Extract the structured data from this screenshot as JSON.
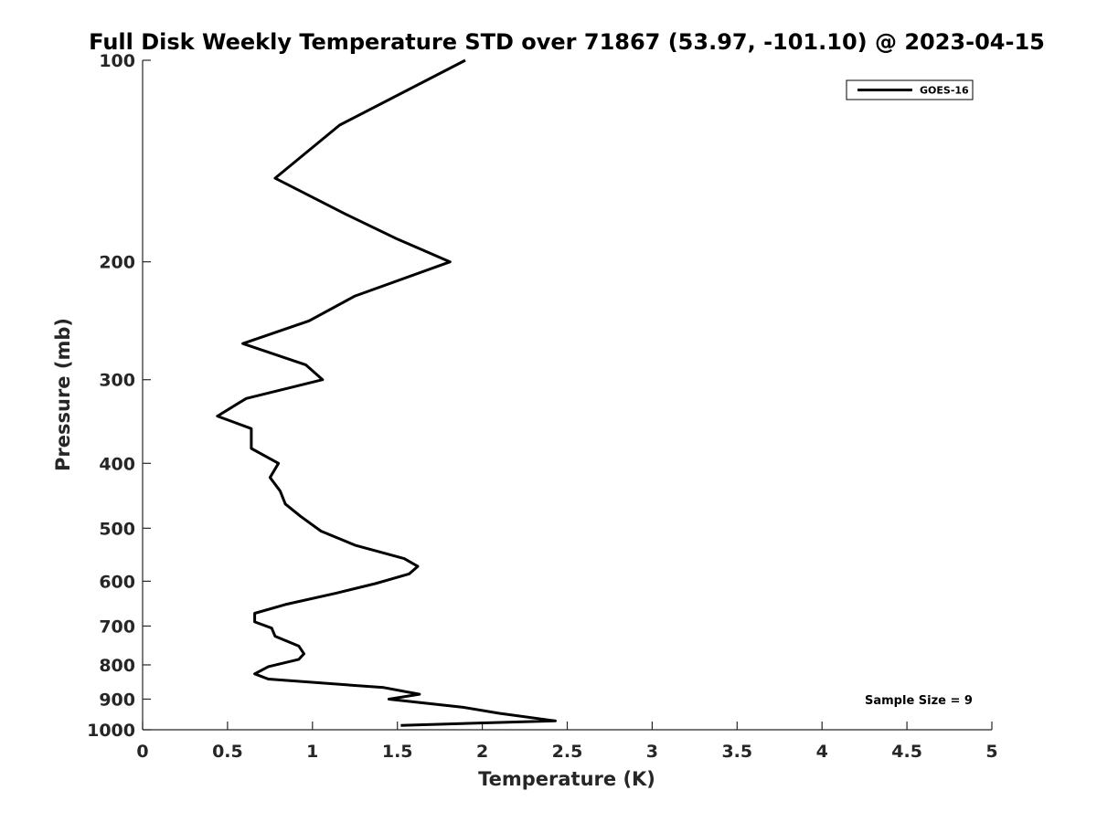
{
  "chart_data": {
    "type": "line",
    "title": "Full Disk Weekly Temperature STD over 71867 (53.97, -101.10) @ 2023-04-15",
    "xlabel": "Temperature (K)",
    "ylabel": "Pressure (mb)",
    "xlim": [
      0,
      5
    ],
    "ylim": [
      100,
      1000
    ],
    "y_scale": "log",
    "y_reversed": true,
    "x_ticks": [
      "0",
      "0.5",
      "1",
      "1.5",
      "2",
      "2.5",
      "3",
      "3.5",
      "4",
      "4.5",
      "5"
    ],
    "y_ticks": [
      "100",
      "200",
      "300",
      "400",
      "500",
      "600",
      "700",
      "800",
      "900",
      "1000"
    ],
    "grid": false,
    "legend_position": "top-right",
    "series": [
      {
        "name": "GOES-16",
        "color": "#000000",
        "points": [
          [
            1.9,
            100
          ],
          [
            1.16,
            125
          ],
          [
            0.78,
            150
          ],
          [
            1.2,
            170
          ],
          [
            1.5,
            185
          ],
          [
            1.81,
            200
          ],
          [
            1.25,
            225
          ],
          [
            0.98,
            245
          ],
          [
            0.59,
            265
          ],
          [
            0.96,
            285
          ],
          [
            1.06,
            300
          ],
          [
            0.61,
            320
          ],
          [
            0.44,
            340
          ],
          [
            0.64,
            355
          ],
          [
            0.64,
            380
          ],
          [
            0.8,
            400
          ],
          [
            0.75,
            420
          ],
          [
            0.81,
            440
          ],
          [
            0.84,
            460
          ],
          [
            0.93,
            480
          ],
          [
            1.05,
            505
          ],
          [
            1.25,
            530
          ],
          [
            1.54,
            555
          ],
          [
            1.62,
            570
          ],
          [
            1.57,
            585
          ],
          [
            1.37,
            605
          ],
          [
            1.14,
            625
          ],
          [
            0.84,
            650
          ],
          [
            0.66,
            670
          ],
          [
            0.66,
            690
          ],
          [
            0.76,
            705
          ],
          [
            0.78,
            725
          ],
          [
            0.92,
            750
          ],
          [
            0.95,
            770
          ],
          [
            0.92,
            785
          ],
          [
            0.74,
            805
          ],
          [
            0.66,
            825
          ],
          [
            0.74,
            840
          ],
          [
            1.42,
            865
          ],
          [
            1.63,
            885
          ],
          [
            1.45,
            900
          ],
          [
            1.88,
            925
          ],
          [
            2.1,
            945
          ],
          [
            2.43,
            970
          ],
          [
            1.52,
            985
          ]
        ]
      }
    ],
    "annotations": [
      "Sample Size = 9"
    ]
  }
}
